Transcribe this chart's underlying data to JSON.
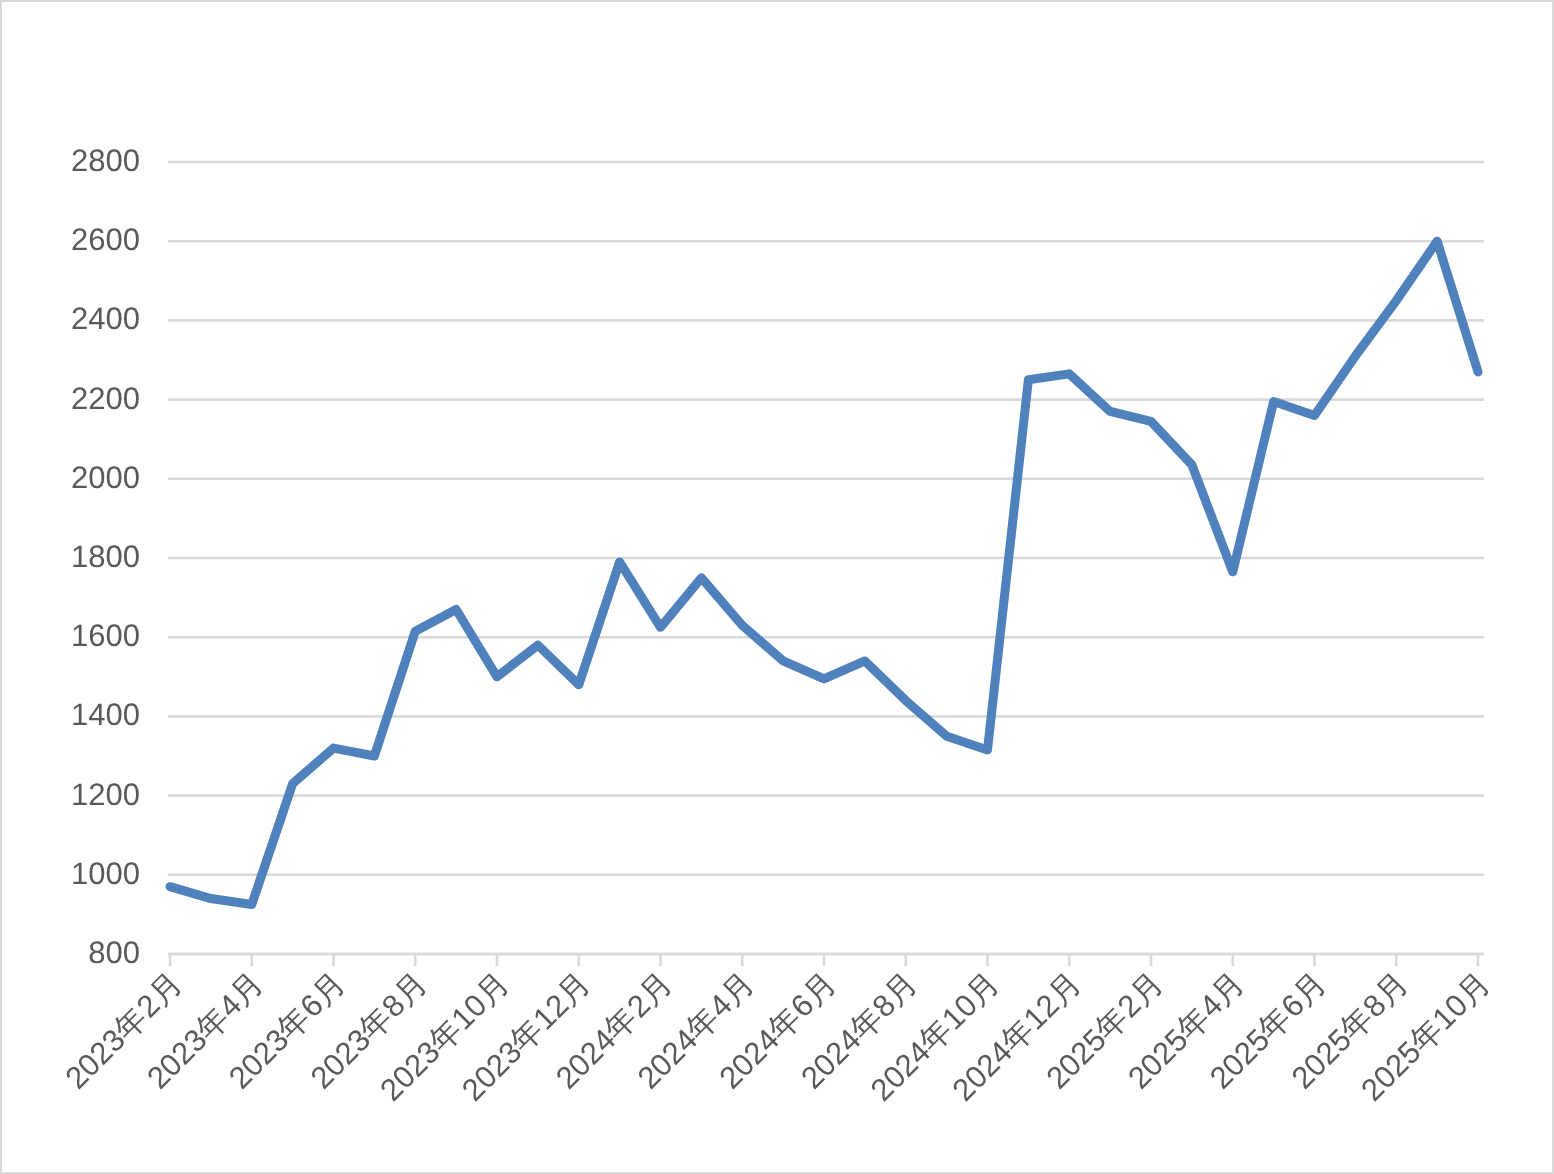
{
  "chart_data": {
    "type": "line",
    "categories": [
      "2023年2月",
      null,
      "2023年4月",
      null,
      "2023年6月",
      null,
      "2023年8月",
      null,
      "2023年10月",
      null,
      "2023年12月",
      null,
      "2024年2月",
      null,
      "2024年4月",
      null,
      "2024年6月",
      null,
      "2024年8月",
      null,
      "2024年10月",
      null,
      "2024年12月",
      null,
      "2025年2月",
      null,
      "2025年4月",
      null,
      "2025年6月",
      null,
      "2025年8月",
      null,
      "2025年10月"
    ],
    "values": [
      970,
      940,
      925,
      1230,
      1320,
      1300,
      1615,
      1670,
      1500,
      1580,
      1480,
      1790,
      1625,
      1750,
      1630,
      1540,
      1495,
      1540,
      1440,
      1350,
      1315,
      2250,
      2265,
      2170,
      2145,
      2035,
      1765,
      2195,
      2160,
      2310,
      2450,
      2600,
      2270
    ],
    "color": "#4f81bd",
    "ylim": [
      800,
      2800
    ],
    "yticks": [
      800,
      1000,
      1200,
      1400,
      1600,
      1800,
      2000,
      2200,
      2400,
      2600,
      2800
    ],
    "grid": "y"
  }
}
